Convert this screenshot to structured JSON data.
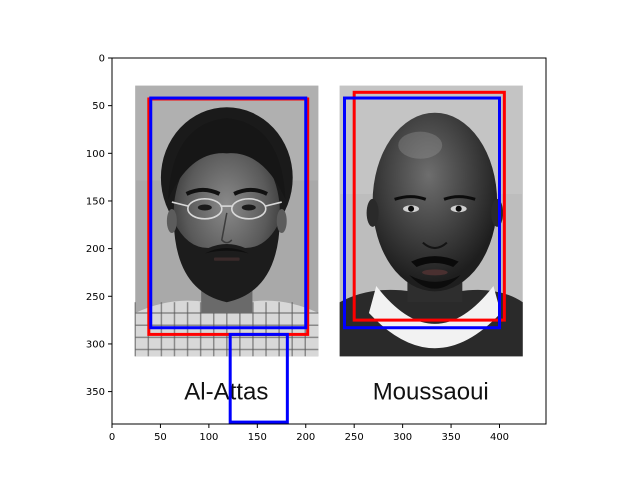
{
  "chart_data": {
    "type": "image",
    "xlim": [
      0,
      448
    ],
    "ylim": [
      384,
      0
    ],
    "x_ticks": [
      0,
      50,
      100,
      150,
      200,
      250,
      300,
      350,
      400
    ],
    "y_ticks": [
      0,
      50,
      100,
      150,
      200,
      250,
      300,
      350
    ],
    "photos": [
      {
        "caption": "Al-Attas",
        "extent": [
          24,
          213,
          29,
          313
        ],
        "caption_pos": [
          118,
          350
        ]
      },
      {
        "caption": "Moussaoui",
        "extent": [
          235,
          424,
          29,
          313
        ],
        "caption_pos": [
          329,
          350
        ]
      }
    ],
    "boxes": [
      {
        "color": "#ff0000",
        "x": [
          38,
          202
        ],
        "y": [
          43,
          290
        ]
      },
      {
        "color": "#0000ff",
        "x": [
          40,
          200
        ],
        "y": [
          42,
          283
        ]
      },
      {
        "color": "#ff0000",
        "x": [
          250,
          405
        ],
        "y": [
          36,
          275
        ]
      },
      {
        "color": "#0000ff",
        "x": [
          240,
          400
        ],
        "y": [
          42,
          283
        ]
      },
      {
        "color": "#0000ff",
        "x": [
          122,
          181
        ],
        "y": [
          290,
          382
        ]
      }
    ]
  }
}
